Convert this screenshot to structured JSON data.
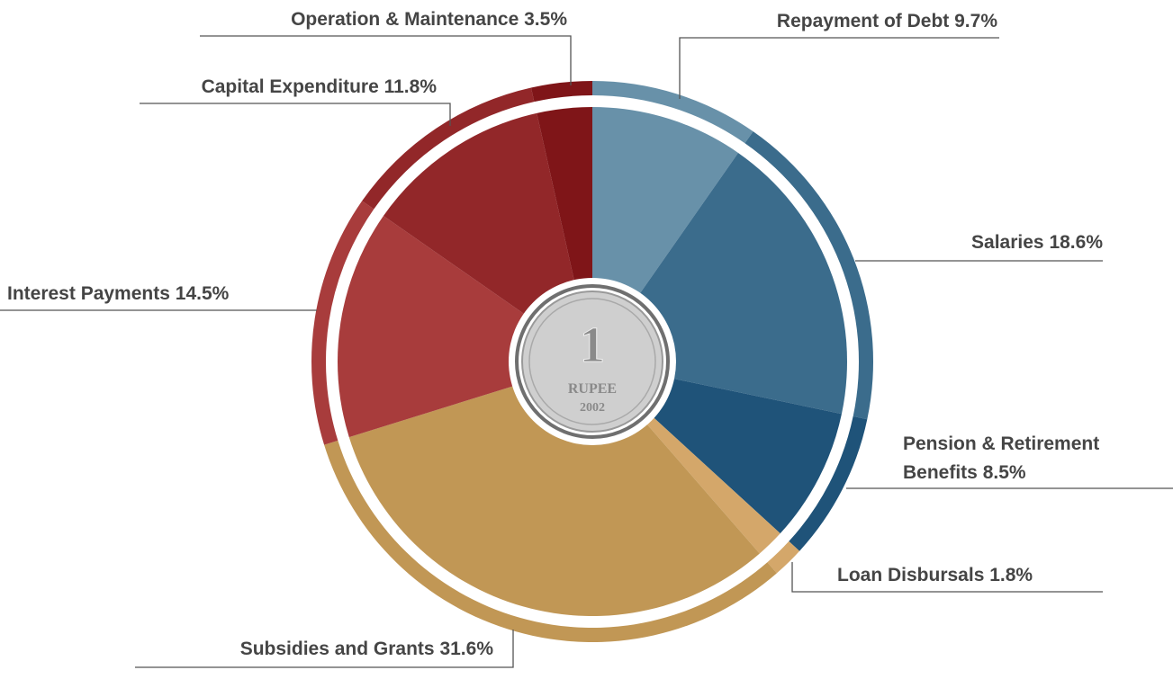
{
  "chart_data": {
    "type": "pie",
    "categories": [
      "Repayment of Debt",
      "Salaries",
      "Pension & Retirement Benefits",
      "Loan Disbursals",
      "Subsidies and Grants",
      "Interest Payments",
      "Capital Expenditure",
      "Operation & Maintenance"
    ],
    "values": [
      9.7,
      18.6,
      8.5,
      1.8,
      31.6,
      14.5,
      11.8,
      3.5
    ],
    "value_labels": [
      "9.7%",
      "18.6%",
      "8.5%",
      "1.8%",
      "31.6%",
      "14.5%",
      "11.8%",
      "3.5%"
    ],
    "colors": [
      "#6891a9",
      "#3b6c8c",
      "#1f5379",
      "#d4a76a",
      "#c19755",
      "#a83c3c",
      "#922729",
      "#7f1518"
    ],
    "center_label": {
      "numeral": "1",
      "text": "RUPEE",
      "year": "2002"
    }
  }
}
